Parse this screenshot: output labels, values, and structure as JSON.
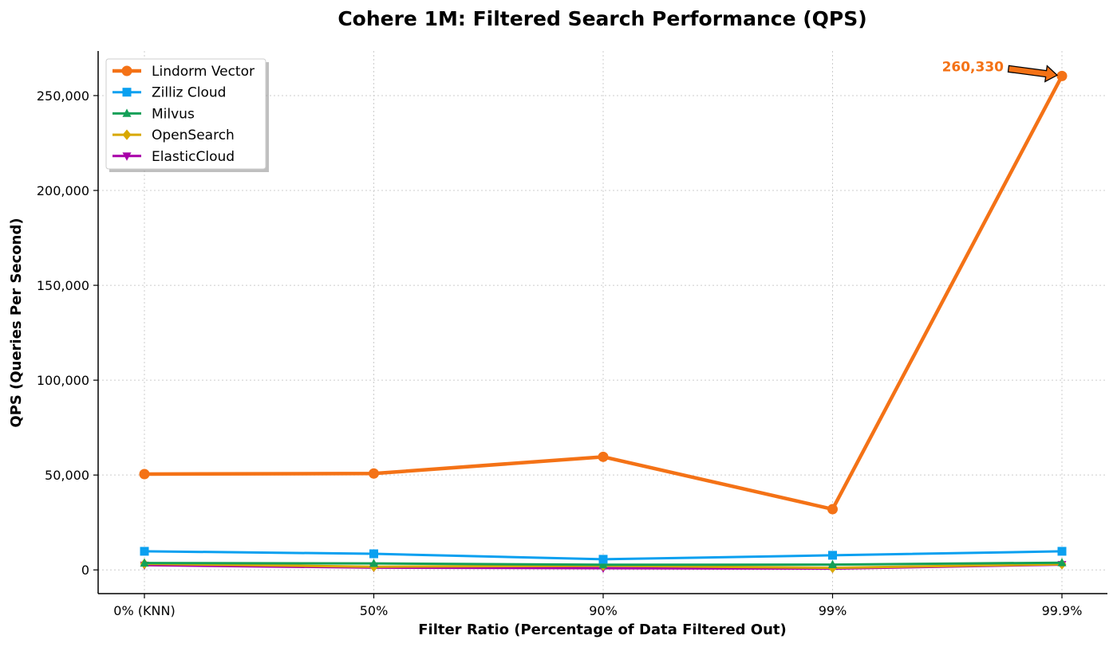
{
  "chart_data": {
    "type": "line",
    "title": "Cohere 1M: Filtered Search Performance (QPS)",
    "xlabel": "Filter Ratio (Percentage of Data Filtered Out)",
    "ylabel": "QPS (Queries Per Second)",
    "categories": [
      "0% (KNN)",
      "50%",
      "90%",
      "99%",
      "99.9%"
    ],
    "ylim": [
      -12500,
      273500
    ],
    "yticks": [
      0,
      50000,
      100000,
      150000,
      200000,
      250000
    ],
    "ytick_labels": [
      "0",
      "50,000",
      "100,000",
      "150,000",
      "200,000",
      "250,000"
    ],
    "grid": true,
    "legend_position": "top-left",
    "series": [
      {
        "name": "Lindorm Vector",
        "values": [
          50500,
          50800,
          59600,
          32000,
          260330
        ],
        "color": "#f47216",
        "marker": "circle"
      },
      {
        "name": "Zilliz Cloud",
        "values": [
          9800,
          8500,
          5600,
          7700,
          9800
        ],
        "color": "#0aa0f0",
        "marker": "square"
      },
      {
        "name": "Milvus",
        "values": [
          3600,
          3400,
          2700,
          2800,
          3800
        ],
        "color": "#14a058",
        "marker": "triangle-up"
      },
      {
        "name": "OpenSearch",
        "values": [
          3200,
          1700,
          2200,
          1100,
          3000
        ],
        "color": "#d8a800",
        "marker": "diamond"
      },
      {
        "name": "ElasticCloud",
        "values": [
          2500,
          1200,
          900,
          700,
          2800
        ],
        "color": "#a800a8",
        "marker": "triangle-down"
      }
    ],
    "annotation": {
      "text": "260,330",
      "series": "Lindorm Vector",
      "category": "99.9%",
      "color": "#f47216"
    }
  }
}
